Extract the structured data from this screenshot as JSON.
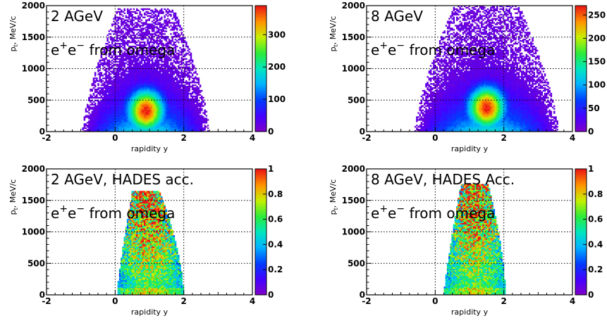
{
  "chart_data": [
    {
      "type": "heatmap",
      "title": "",
      "xlabel": "rapidity y",
      "ylabel": "p_t, MeV/c",
      "xlim": [
        -2,
        4
      ],
      "ylim": [
        0,
        2000
      ],
      "xticks": [
        "-2",
        "0",
        "2",
        "4"
      ],
      "yticks": [
        "0",
        "500",
        "1000",
        "1500",
        "2000"
      ],
      "annotations": [
        "2 AGeV",
        "e+e− from omega"
      ],
      "ann_lines": [
        {
          "text": "2 AGeV"
        },
        {
          "base": "e",
          "sup1": "+",
          "mid": "e",
          "sup2": "−",
          "rest": " from omega"
        }
      ],
      "colorbar": {
        "min": 0,
        "max": 390,
        "ticks": [
          "0",
          "100",
          "200",
          "300"
        ],
        "tick_values": [
          0,
          100,
          200,
          300
        ]
      },
      "grid": true,
      "distribution": {
        "shape": "omega-full",
        "center_y": 0.9,
        "peak_pt": 330,
        "max_pt": 1950,
        "y_min": -1.0,
        "y_max": 2.7
      }
    },
    {
      "type": "heatmap",
      "title": "",
      "xlabel": "rapidity y",
      "ylabel": "p_t, MeV/c",
      "xlim": [
        -2,
        4
      ],
      "ylim": [
        0,
        2000
      ],
      "xticks": [
        "-2",
        "0",
        "2",
        "4"
      ],
      "yticks": [
        "0",
        "500",
        "1000",
        "1500",
        "2000"
      ],
      "annotations": [
        "8 AGeV",
        "e+e− from omega"
      ],
      "ann_lines": [
        {
          "text": "8 AGeV"
        },
        {
          "base": "e",
          "sup1": "+",
          "mid": "e",
          "sup2": "−",
          "rest": " from omega"
        }
      ],
      "colorbar": {
        "min": 0,
        "max": 270,
        "ticks": [
          "0",
          "50",
          "100",
          "150",
          "200",
          "250"
        ],
        "tick_values": [
          0,
          50,
          100,
          150,
          200,
          250
        ]
      },
      "grid": true,
      "distribution": {
        "shape": "omega-full",
        "center_y": 1.5,
        "peak_pt": 380,
        "max_pt": 2000,
        "y_min": -0.6,
        "y_max": 3.6
      }
    },
    {
      "type": "heatmap",
      "title": "",
      "xlabel": "rapidity y",
      "ylabel": "p_t, MeV/c",
      "xlim": [
        -2,
        4
      ],
      "ylim": [
        0,
        2000
      ],
      "xticks": [
        "-2",
        "0",
        "2",
        "4"
      ],
      "yticks": [
        "0",
        "500",
        "1000",
        "1500",
        "2000"
      ],
      "annotations": [
        "2 AGeV, HADES acc.",
        "e+e− from omega"
      ],
      "ann_lines": [
        {
          "text": "2 AGeV, HADES acc."
        },
        {
          "base": "e",
          "sup1": "+",
          "mid": "e",
          "sup2": "−",
          "rest": " from omega"
        }
      ],
      "colorbar": {
        "min": 0,
        "max": 1,
        "ticks": [
          "0",
          "0.2",
          "0.4",
          "0.6",
          "0.8",
          "1"
        ],
        "tick_values": [
          0,
          0.2,
          0.4,
          0.6,
          0.8,
          1.0
        ]
      },
      "grid": true,
      "distribution": {
        "shape": "acceptance",
        "center_y": 0.85,
        "max_pt": 1650,
        "y_min": 0.05,
        "y_max": 2.0
      }
    },
    {
      "type": "heatmap",
      "title": "",
      "xlabel": "rapidity y",
      "ylabel": "p_t, MeV/c",
      "xlim": [
        -2,
        4
      ],
      "ylim": [
        0,
        2000
      ],
      "xticks": [
        "-2",
        "0",
        "2",
        "4"
      ],
      "yticks": [
        "0",
        "500",
        "1000",
        "1500",
        "2000"
      ],
      "annotations": [
        "8 AGeV, HADES Acc.",
        "e+e− from omega"
      ],
      "ann_lines": [
        {
          "text": "8 AGeV, HADES Acc."
        },
        {
          "base": "e",
          "sup1": "+",
          "mid": "e",
          "sup2": "−",
          "rest": " from omega"
        }
      ],
      "colorbar": {
        "min": 0,
        "max": 1,
        "ticks": [
          "0",
          "0.2",
          "0.4",
          "0.6",
          "0.8",
          "1"
        ],
        "tick_values": [
          0,
          0.2,
          0.4,
          0.6,
          0.8,
          1.0
        ]
      },
      "grid": true,
      "distribution": {
        "shape": "acceptance",
        "center_y": 1.1,
        "max_pt": 1750,
        "y_min": 0.25,
        "y_max": 2.05
      }
    }
  ]
}
